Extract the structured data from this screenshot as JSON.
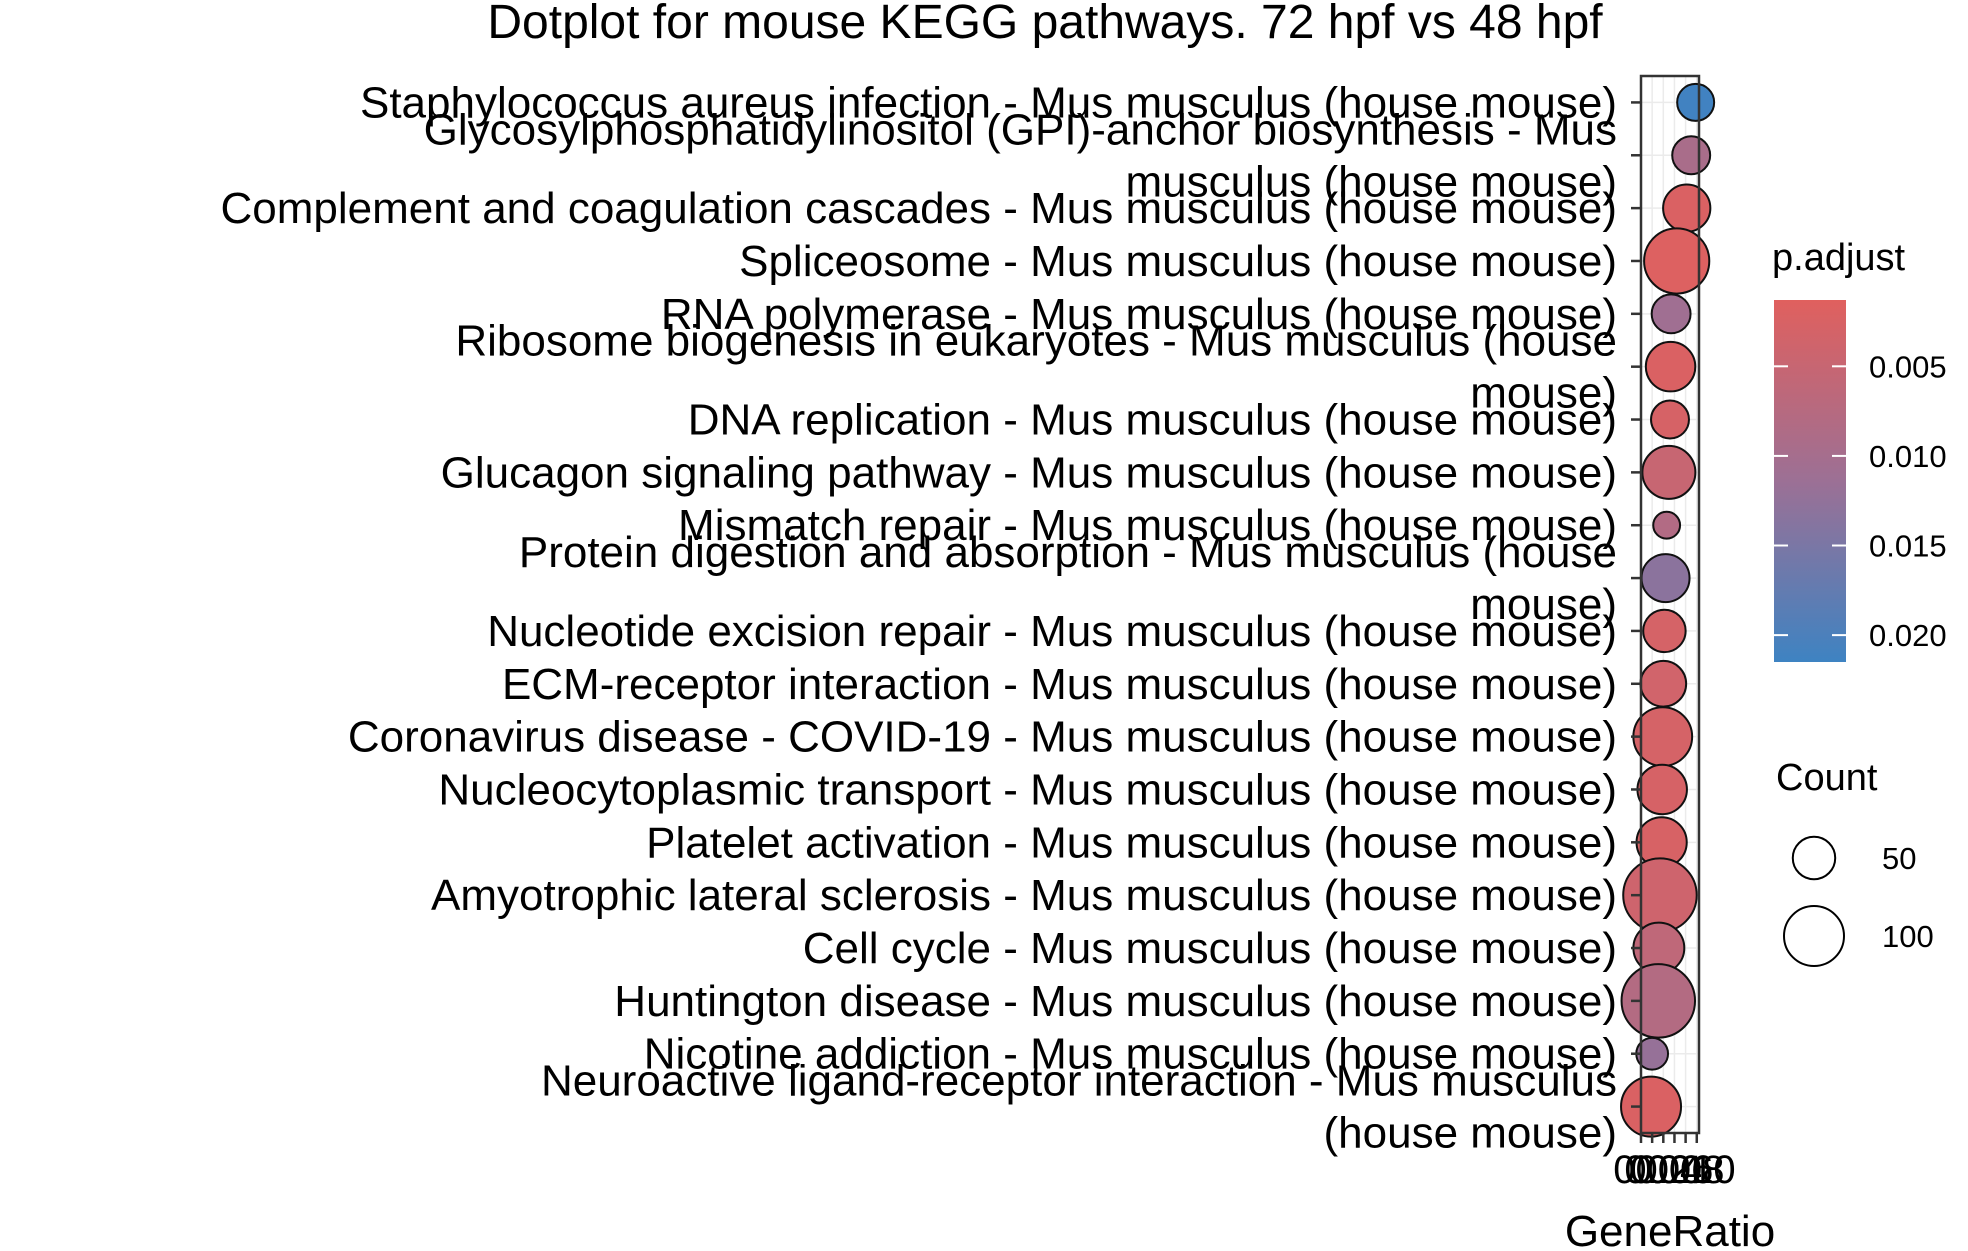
{
  "chart_data": {
    "type": "scatter",
    "title": "Dotplot for mouse KEGG pathways. 72 hpf vs 48 hpf",
    "xlabel": "GeneRatio",
    "ylabel": "",
    "x_tick_labels": [
      "0",
      "0.02",
      "0.04",
      "0.06",
      "0.08",
      "0.10"
    ],
    "xlim": [
      0.0,
      0.104
    ],
    "grid": true,
    "legend_position": "right",
    "color_legend": {
      "title": "p.adjust",
      "ticks": [
        "0.005",
        "0.010",
        "0.015",
        "0.020"
      ],
      "tick_values": [
        0.005,
        0.01,
        0.015,
        0.02
      ],
      "range": [
        0.0013,
        0.0215
      ],
      "low_color": "#E0605E",
      "mid_color": "#9C7095",
      "high_color": "#3E83C2"
    },
    "size_legend": {
      "title": "Count",
      "labels": [
        "50",
        "100"
      ],
      "values": [
        50,
        100
      ]
    },
    "points": [
      {
        "label": "Staphylococcus aureus infection - Mus musculus (house mouse)",
        "lines": [
          "Staphylococcus aureus infection - Mus musculus (house mouse)"
        ],
        "x": 0.098,
        "count": 38,
        "p_adjust": 0.0212
      },
      {
        "label": "Glycosylphosphatidylinositol (GPI)-anchor biosynthesis - Mus musculus (house mouse)",
        "lines": [
          "Glycosylphosphatidylinositol (GPI)-anchor biosynthesis - Mus",
          "musculus (house mouse)"
        ],
        "x": 0.09,
        "count": 40,
        "p_adjust": 0.0094
      },
      {
        "label": "Complement and coagulation cascades - Mus musculus (house mouse)",
        "lines": [
          "Complement and coagulation cascades - Mus musculus (house mouse)"
        ],
        "x": 0.082,
        "count": 62,
        "p_adjust": 0.0022
      },
      {
        "label": "Spliceosome - Mus musculus (house mouse)",
        "lines": [
          "Spliceosome - Mus musculus (house mouse)"
        ],
        "x": 0.064,
        "count": 118,
        "p_adjust": 0.0018
      },
      {
        "label": "RNA polymerase - Mus musculus (house mouse)",
        "lines": [
          "RNA polymerase - Mus musculus (house mouse)"
        ],
        "x": 0.054,
        "count": 42,
        "p_adjust": 0.0108
      },
      {
        "label": "Ribosome biogenesis in eukaryotes - Mus musculus (house mouse)",
        "lines": [
          "Ribosome biogenesis in eukaryotes - Mus musculus (house",
          "mouse)"
        ],
        "x": 0.053,
        "count": 68,
        "p_adjust": 0.0022
      },
      {
        "label": "DNA replication - Mus musculus (house mouse)",
        "lines": [
          "DNA replication - Mus musculus (house mouse)"
        ],
        "x": 0.052,
        "count": 40,
        "p_adjust": 0.0028
      },
      {
        "label": "Glucagon signaling pathway - Mus musculus (house mouse)",
        "lines": [
          "Glucagon signaling pathway - Mus musculus (house mouse)"
        ],
        "x": 0.05,
        "count": 78,
        "p_adjust": 0.005
      },
      {
        "label": "Mismatch repair - Mus musculus (house mouse)",
        "lines": [
          "Mismatch repair - Mus musculus (house mouse)"
        ],
        "x": 0.046,
        "count": 20,
        "p_adjust": 0.0082
      },
      {
        "label": "Protein digestion and absorption - Mus musculus (house mouse)",
        "lines": [
          "Protein digestion and absorption - Mus musculus (house",
          "mouse)"
        ],
        "x": 0.044,
        "count": 64,
        "p_adjust": 0.0132
      },
      {
        "label": "Nucleotide excision repair - Mus musculus (house mouse)",
        "lines": [
          "Nucleotide excision repair - Mus musculus (house mouse)"
        ],
        "x": 0.042,
        "count": 50,
        "p_adjust": 0.003
      },
      {
        "label": "ECM-receptor interaction - Mus musculus (house mouse)",
        "lines": [
          "ECM-receptor interaction - Mus musculus (house mouse)"
        ],
        "x": 0.04,
        "count": 58,
        "p_adjust": 0.0036
      },
      {
        "label": "Coronavirus disease - COVID-19 - Mus musculus (house mouse)",
        "lines": [
          "Coronavirus disease - COVID-19 - Mus musculus (house mouse)"
        ],
        "x": 0.039,
        "count": 96,
        "p_adjust": 0.003
      },
      {
        "label": "Nucleocytoplasmic transport - Mus musculus (house mouse)",
        "lines": [
          "Nucleocytoplasmic transport - Mus musculus (house mouse)"
        ],
        "x": 0.038,
        "count": 68,
        "p_adjust": 0.0028
      },
      {
        "label": "Platelet activation - Mus musculus (house mouse)",
        "lines": [
          "Platelet activation - Mus musculus (house mouse)"
        ],
        "x": 0.037,
        "count": 70,
        "p_adjust": 0.0026
      },
      {
        "label": "Amyotrophic lateral sclerosis - Mus musculus (house mouse)",
        "lines": [
          "Amyotrophic lateral sclerosis - Mus musculus (house mouse)"
        ],
        "x": 0.034,
        "count": 150,
        "p_adjust": 0.004
      },
      {
        "label": "Cell cycle - Mus musculus (house mouse)",
        "lines": [
          "Cell cycle - Mus musculus (house mouse)"
        ],
        "x": 0.032,
        "count": 72,
        "p_adjust": 0.0062
      },
      {
        "label": "Huntington disease - Mus musculus (house mouse)",
        "lines": [
          "Huntington disease - Mus musculus (house mouse)"
        ],
        "x": 0.031,
        "count": 150,
        "p_adjust": 0.008
      },
      {
        "label": "Nicotine addiction - Mus musculus (house mouse)",
        "lines": [
          "Nicotine addiction - Mus musculus (house mouse)"
        ],
        "x": 0.02,
        "count": 28,
        "p_adjust": 0.012
      },
      {
        "label": "Neuroactive ligand-receptor interaction - Mus musculus (house mouse)",
        "lines": [
          "Neuroactive ligand-receptor interaction - Mus musculus",
          "(house mouse)"
        ],
        "x": 0.018,
        "count": 100,
        "p_adjust": 0.0022
      }
    ]
  }
}
